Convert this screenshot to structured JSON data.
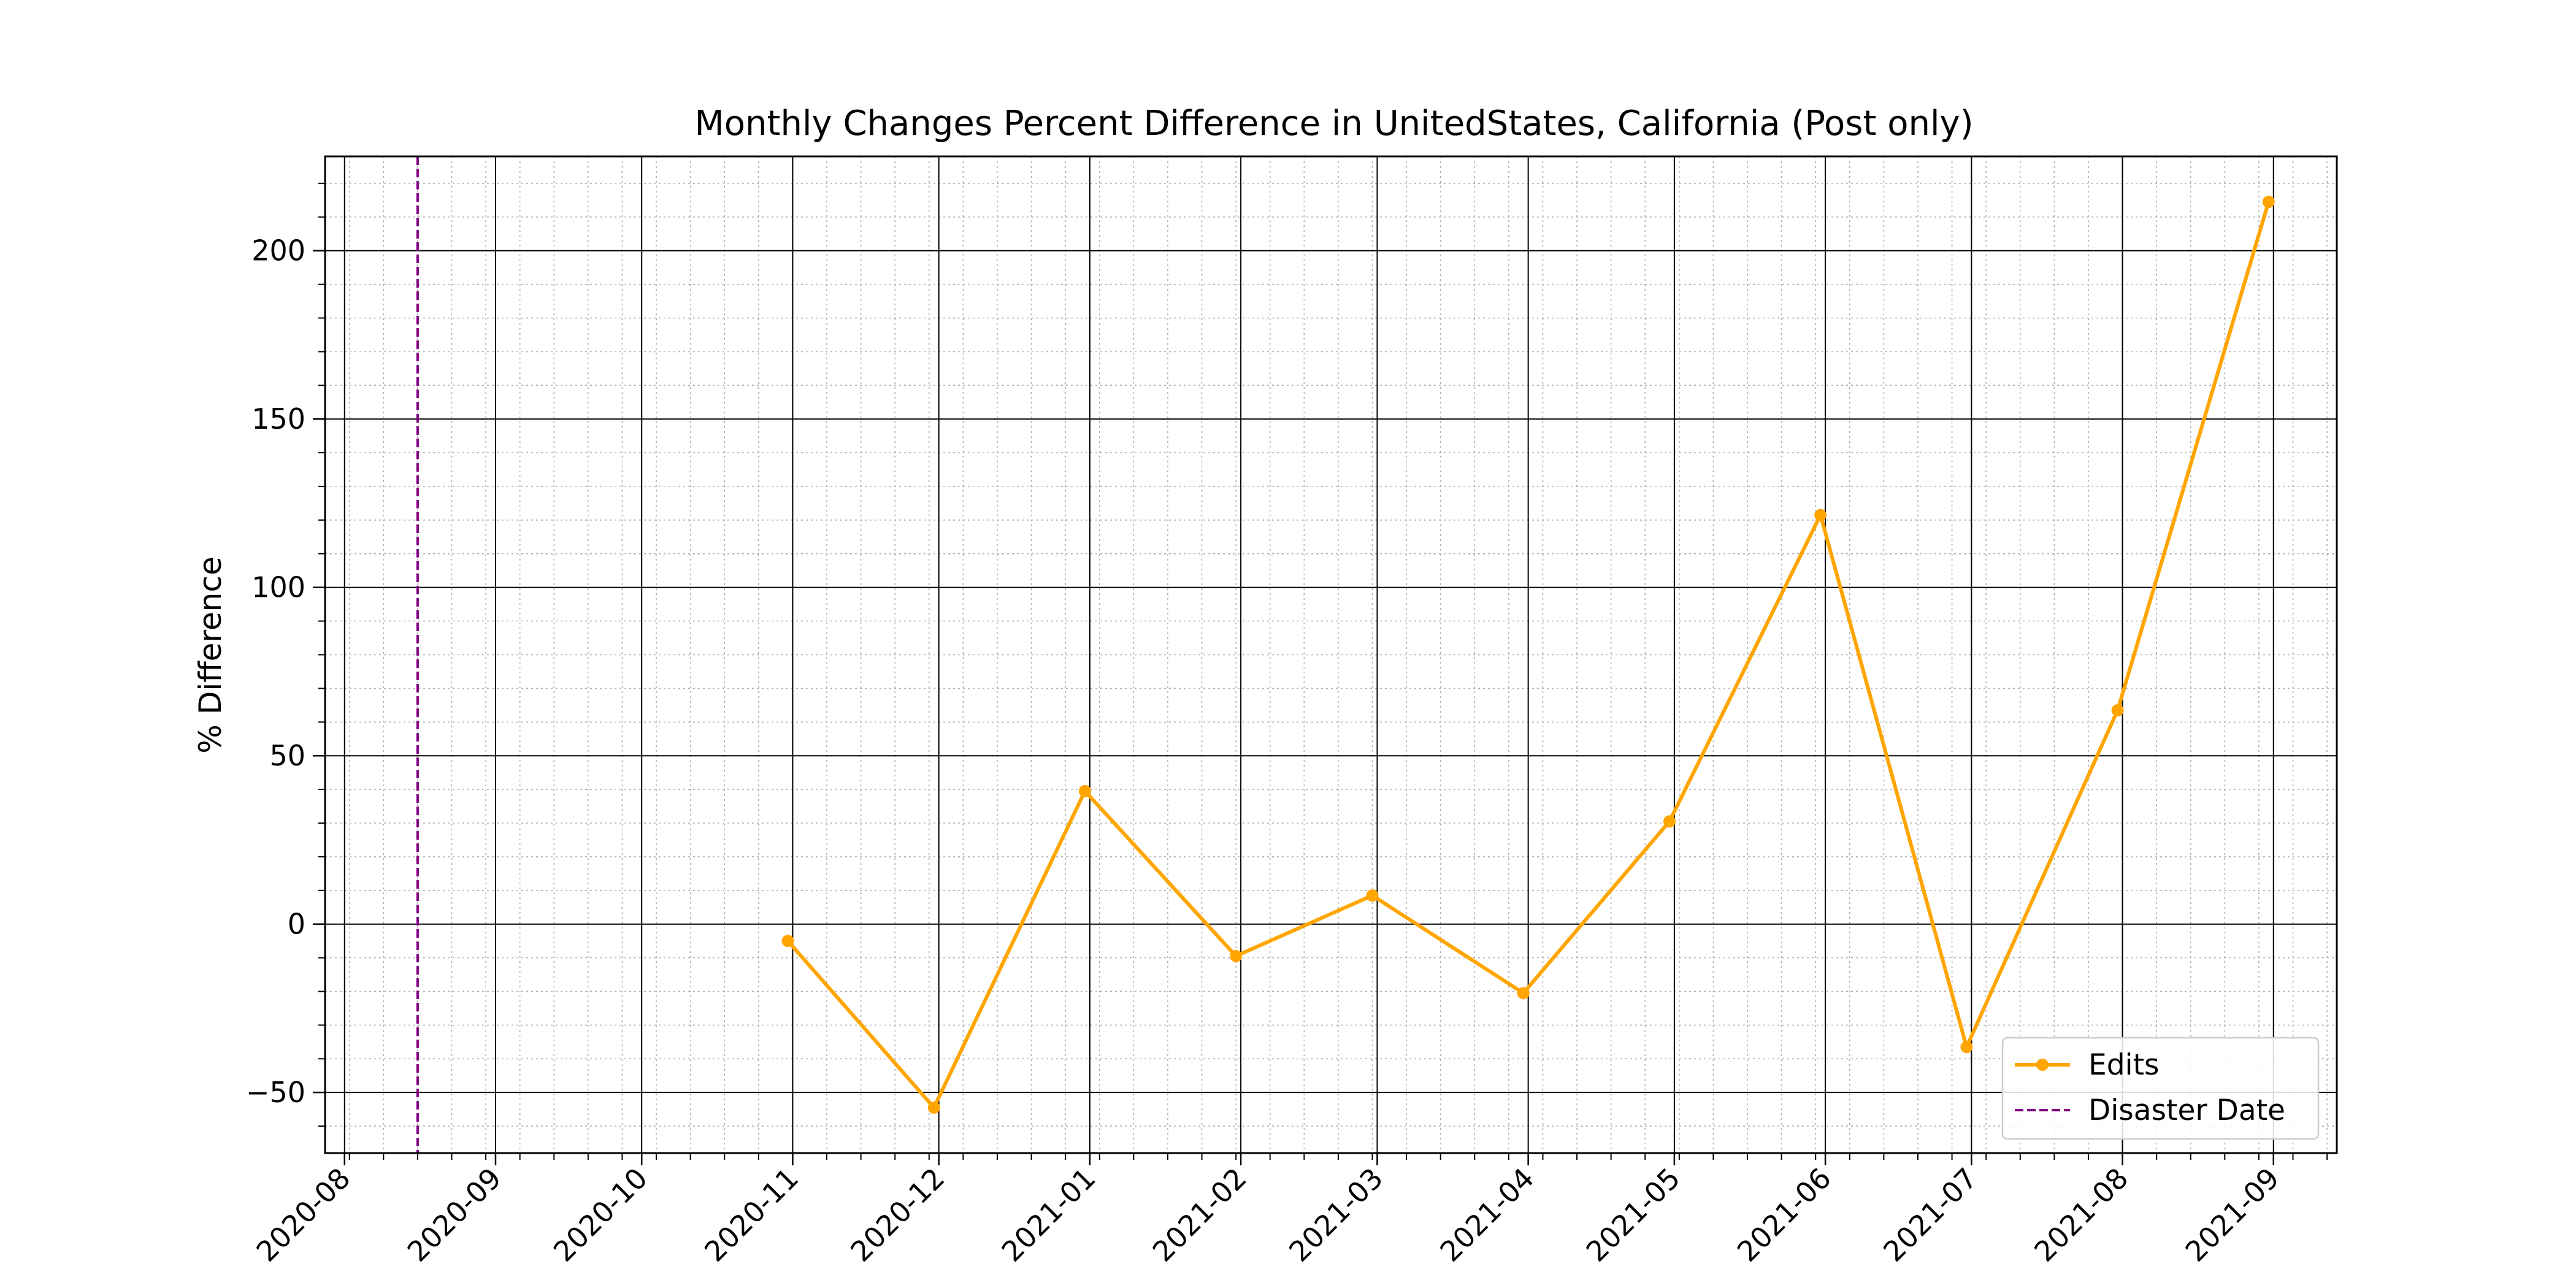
{
  "chart_data": {
    "type": "line",
    "title": "Monthly Changes Percent Difference in UnitedStates, California (Post only)",
    "xlabel": "",
    "ylabel": "% Difference",
    "x_ticks": [
      "2020-08-01",
      "2020-09-01",
      "2020-10-01",
      "2020-11-01",
      "2020-12-01",
      "2021-01-01",
      "2021-02-01",
      "2021-03-01",
      "2021-04-01",
      "2021-05-01",
      "2021-06-01",
      "2021-07-01",
      "2021-08-01",
      "2021-09-01"
    ],
    "x_tick_labels": [
      "2020-08",
      "2020-09",
      "2020-10",
      "2020-11",
      "2020-12",
      "2021-01",
      "2021-02",
      "2021-03",
      "2021-04",
      "2021-05",
      "2021-06",
      "2021-07",
      "2021-08",
      "2021-09"
    ],
    "xlim": [
      "2020-07-28",
      "2021-09-14"
    ],
    "y_ticks": [
      -50,
      0,
      50,
      100,
      150,
      200
    ],
    "y_tick_labels": [
      "−50",
      "0",
      "50",
      "100",
      "150",
      "200"
    ],
    "ylim": [
      -68,
      228
    ],
    "grid": true,
    "legend_position": "lower right",
    "series": [
      {
        "name": "Edits",
        "color": "#FFA500",
        "marker": "circle",
        "points": [
          {
            "x": "2020-10-31",
            "y": -5
          },
          {
            "x": "2020-11-30",
            "y": -54.5
          },
          {
            "x": "2020-12-31",
            "y": 39.5
          },
          {
            "x": "2021-01-31",
            "y": -9.5
          },
          {
            "x": "2021-02-28",
            "y": 8.5
          },
          {
            "x": "2021-03-31",
            "y": -20.5
          },
          {
            "x": "2021-04-30",
            "y": 30.5
          },
          {
            "x": "2021-05-31",
            "y": 121.5
          },
          {
            "x": "2021-06-30",
            "y": -36.5
          },
          {
            "x": "2021-07-31",
            "y": 63.5
          },
          {
            "x": "2021-08-31",
            "y": 214.5
          }
        ]
      }
    ],
    "vlines": [
      {
        "name": "Disaster Date",
        "x": "2020-08-16",
        "color": "#800080",
        "style": "dashed"
      }
    ]
  }
}
